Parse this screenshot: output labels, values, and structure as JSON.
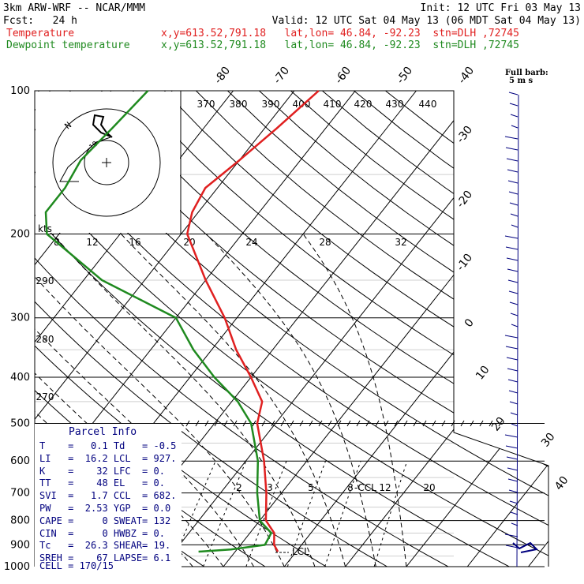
{
  "header": {
    "model": "3km ARW-WRF -- NCAR/MMM",
    "init": "Init: 12 UTC Fri 03 May 13",
    "fcst": "Fcst:   24 h",
    "valid": "Valid: 12 UTC Sat 04 May 13 (06 MDT Sat 04 May 13)",
    "temp_label": "Temperature",
    "dew_label": "Dewpoint temperature",
    "loc_info": "x,y=613.52,791.18   lat,lon= 46.84, -92.23  stn=DLH ,72745"
  },
  "colors": {
    "temperature": "#e02020",
    "dewpoint": "#1f8a1f",
    "wind": "#00007f",
    "parcel": "#00007f"
  },
  "chart_data": {
    "type": "line",
    "title": "",
    "y_axis": {
      "label": "",
      "scale": "log",
      "ylim": [
        1000,
        100
      ],
      "ticks": [
        100,
        200,
        300,
        400,
        500,
        600,
        700,
        800,
        900,
        1000
      ]
    },
    "isotherm_labels": [
      "-80",
      "-70",
      "-60",
      "-50",
      "-40",
      "-30",
      "-20",
      "-10",
      "0",
      "10",
      "20",
      "30",
      "40"
    ],
    "theta_labels": [
      "370",
      "380",
      "390",
      "400",
      "410",
      "420",
      "430",
      "440"
    ],
    "theta_labels_lower": [
      "290",
      "280",
      "270"
    ],
    "mixing_ratio_labels": [
      "2",
      "3",
      "5",
      "8",
      "12",
      "20"
    ],
    "wind_speed_labels": [
      "8",
      "12",
      "16",
      "20",
      "24",
      "28",
      "32"
    ],
    "wind_speed_unit": "kts",
    "lcl_label": "LCL",
    "ccl_label": "CCL",
    "barb_key": "Full barb:",
    "barb_key_unit": "5 m s",
    "series": [
      {
        "name": "Temperature",
        "points": [
          [
            930,
            7
          ],
          [
            900,
            5.5
          ],
          [
            850,
            4
          ],
          [
            800,
            1
          ],
          [
            700,
            -2.5
          ],
          [
            600,
            -7
          ],
          [
            500,
            -13
          ],
          [
            450,
            -15
          ],
          [
            400,
            -20
          ],
          [
            350,
            -26
          ],
          [
            300,
            -32
          ],
          [
            250,
            -40
          ],
          [
            200,
            -49
          ],
          [
            180,
            -51
          ],
          [
            160,
            -52
          ],
          [
            140,
            -50
          ],
          [
            120,
            -48
          ],
          [
            100,
            -46
          ]
        ]
      },
      {
        "name": "Dewpoint temperature",
        "points": [
          [
            930,
            -6
          ],
          [
            920,
            -1
          ],
          [
            900,
            4
          ],
          [
            850,
            3.5
          ],
          [
            800,
            0
          ],
          [
            700,
            -4
          ],
          [
            600,
            -8
          ],
          [
            500,
            -14
          ],
          [
            450,
            -19
          ],
          [
            400,
            -26
          ],
          [
            350,
            -33
          ],
          [
            300,
            -40
          ],
          [
            250,
            -57
          ],
          [
            200,
            -72
          ],
          [
            180,
            -75
          ],
          [
            160,
            -75
          ],
          [
            140,
            -76
          ],
          [
            120,
            -75
          ],
          [
            100,
            -74
          ]
        ]
      }
    ],
    "hodograph_label": "",
    "parcel_info": {
      "title": "Parcel Info",
      "rows": [
        [
          "T",
          "=",
          "0.1",
          "Td",
          "=",
          "-0.5"
        ],
        [
          "LI",
          "=",
          "16.2",
          "LCL",
          "=",
          "927."
        ],
        [
          "K",
          "=",
          "32",
          "LFC",
          "=",
          "0."
        ],
        [
          "TT",
          "=",
          "48",
          "EL",
          "=",
          "0."
        ],
        [
          "SVI",
          "=",
          "1.7",
          "CCL",
          "=",
          "682."
        ],
        [
          "PW",
          "=",
          "2.53",
          "YGP",
          "=",
          "0.0"
        ],
        [
          "CAPE",
          "=",
          "0",
          "SWEAT",
          "=",
          "132"
        ],
        [
          "CIN",
          "=",
          "0",
          "HWBZ",
          "=",
          "0."
        ],
        [
          "Tc",
          "=",
          "26.3",
          "SHEAR",
          "=",
          "19."
        ],
        [
          "SREH",
          "=",
          "67",
          "LAPSE",
          "=",
          "6.1"
        ]
      ],
      "cell": "CELL = 170/15"
    }
  }
}
